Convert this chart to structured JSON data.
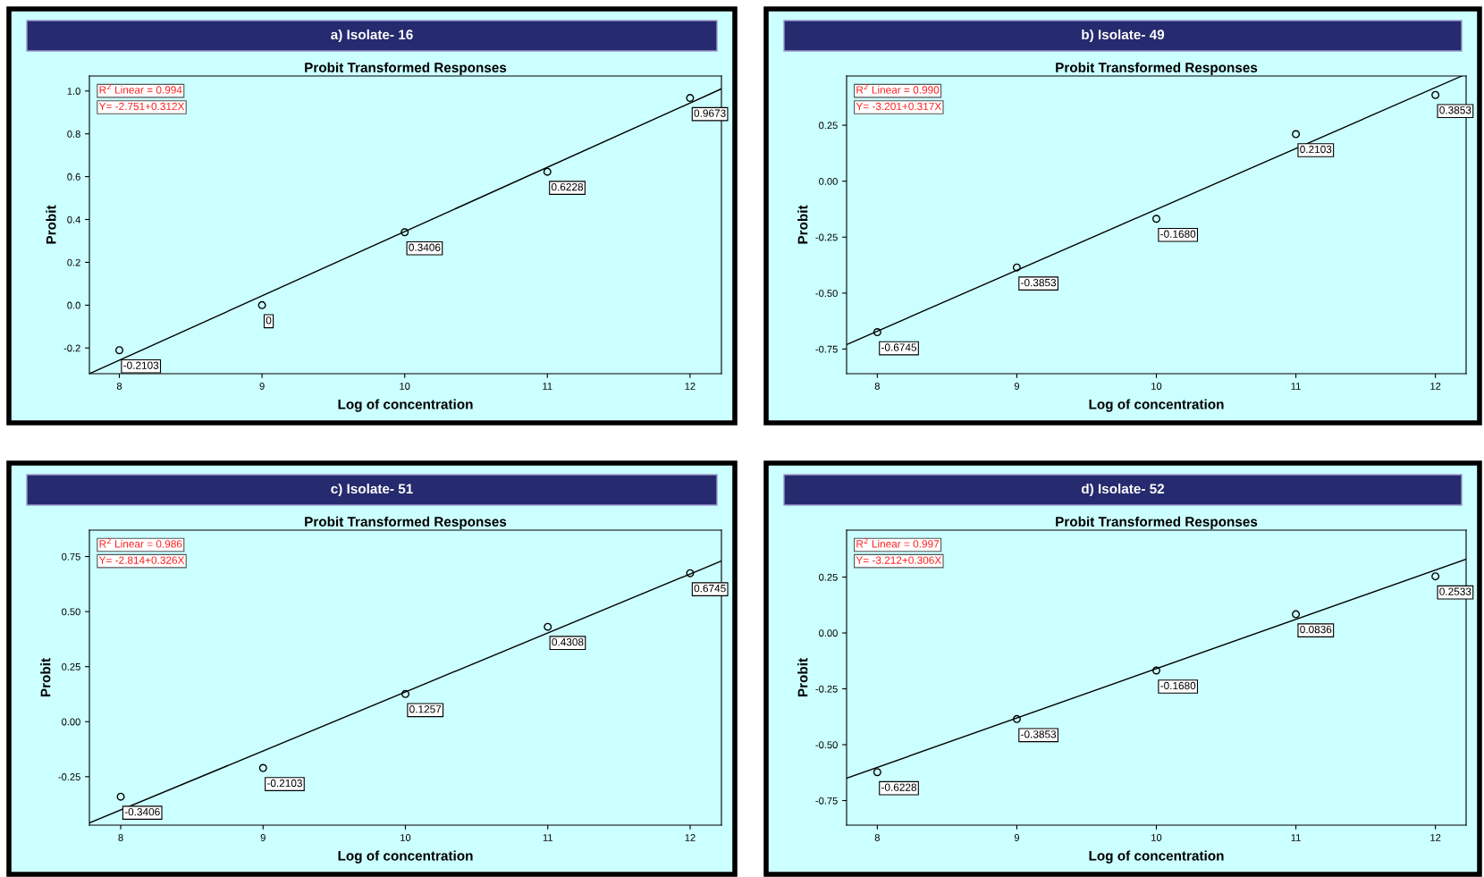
{
  "chart_data": [
    {
      "type": "scatter",
      "title": "a) Isolate- 16",
      "subtitle": "Probit Transformed Responses",
      "xlabel": "Log of concentration",
      "ylabel": "Probit",
      "xlim": [
        7.79,
        12.22
      ],
      "ylim": [
        -0.32,
        1.07
      ],
      "xticks": [
        8,
        9,
        10,
        11,
        12
      ],
      "yticks": [
        {
          "value": -0.2,
          "label": "-0.2"
        },
        {
          "value": 0,
          "label": "0.0"
        },
        {
          "value": 0.2,
          "label": "0.2"
        },
        {
          "value": 0.4,
          "label": "0.4"
        },
        {
          "value": 0.6,
          "label": "0.6"
        },
        {
          "value": 0.8,
          "label": "0.8"
        },
        {
          "value": 1,
          "label": "1.0"
        }
      ],
      "grid": false,
      "annotations": [
        "R$^{2}$ Linear = 0.994",
        "Y= -2.751+0.312X"
      ],
      "series": [
        {
          "type": "scatter",
          "x": [
            8,
            9,
            10,
            11,
            12
          ],
          "values": [
            -0.2103,
            0,
            0.3406,
            0.6228,
            0.9673
          ],
          "value_labels": [
            "-0.2103",
            "0",
            "0.3406",
            "0.6228",
            "0.9673"
          ],
          "color": "#000000",
          "marker": "circle"
        },
        {
          "type": "line",
          "x": [
            7.79,
            12.22
          ],
          "values": [
            -0.32,
            1.01
          ],
          "color": "#000000",
          "line_style": "solid"
        }
      ]
    },
    {
      "type": "scatter",
      "title": "b) Isolate- 49",
      "subtitle": "Probit Transformed Responses",
      "xlabel": "Log of concentration",
      "ylabel": "Probit",
      "xlim": [
        7.78,
        12.22
      ],
      "ylim": [
        -0.86,
        0.47
      ],
      "xticks": [
        8,
        9,
        10,
        11,
        12
      ],
      "yticks": [
        {
          "value": -0.75,
          "label": "-0.75"
        },
        {
          "value": -0.5,
          "label": "-0.50"
        },
        {
          "value": -0.25,
          "label": "-0.25"
        },
        {
          "value": 0,
          "label": "0.00"
        },
        {
          "value": 0.25,
          "label": "0.25"
        }
      ],
      "grid": false,
      "annotations": [
        "R$^{2}$ Linear = 0.990",
        "Y= -3.201+0.317X"
      ],
      "series": [
        {
          "type": "scatter",
          "x": [
            8,
            9,
            10,
            11,
            12
          ],
          "values": [
            -0.6745,
            -0.3853,
            -0.168,
            0.2103,
            0.3853
          ],
          "value_labels": [
            "-0.6745",
            "-0.3853",
            "-0.1680",
            "0.2103",
            "0.3853"
          ],
          "color": "#000000",
          "marker": "circle"
        },
        {
          "type": "line",
          "x": [
            7.78,
            12.19
          ],
          "values": [
            -0.73,
            0.47
          ],
          "color": "#000000",
          "line_style": "solid"
        }
      ]
    },
    {
      "type": "scatter",
      "title": "c) Isolate- 51",
      "subtitle": "Probit Transformed Responses",
      "xlabel": "Log of concentration",
      "ylabel": "Probit",
      "xlim": [
        7.78,
        12.22
      ],
      "ylim": [
        -0.47,
        0.87
      ],
      "xticks": [
        8,
        9,
        10,
        11,
        12
      ],
      "yticks": [
        {
          "value": -0.25,
          "label": "-0.25"
        },
        {
          "value": 0,
          "label": "0.00"
        },
        {
          "value": 0.25,
          "label": "0.25"
        },
        {
          "value": 0.5,
          "label": "0.50"
        },
        {
          "value": 0.75,
          "label": "0.75"
        }
      ],
      "grid": false,
      "annotations": [
        "R$^{2}$ Linear = 0.986",
        "Y= -2.814+0.326X"
      ],
      "series": [
        {
          "type": "scatter",
          "x": [
            8,
            9,
            10,
            11,
            12
          ],
          "values": [
            -0.3406,
            -0.2103,
            0.1257,
            0.4308,
            0.6745
          ],
          "value_labels": [
            "-0.3406",
            "-0.2103",
            "0.1257",
            "0.4308",
            "0.6745"
          ],
          "color": "#000000",
          "marker": "circle"
        },
        {
          "type": "line",
          "x": [
            7.78,
            12.22
          ],
          "values": [
            -0.46,
            0.73
          ],
          "color": "#000000",
          "line_style": "solid"
        }
      ]
    },
    {
      "type": "scatter",
      "title": "d) Isolate- 52",
      "subtitle": "Probit Transformed Responses",
      "xlabel": "Log of concentration",
      "ylabel": "Probit",
      "xlim": [
        7.78,
        12.22
      ],
      "ylim": [
        -0.86,
        0.46
      ],
      "xticks": [
        8,
        9,
        10,
        11,
        12
      ],
      "yticks": [
        {
          "value": -0.75,
          "label": "-0.75"
        },
        {
          "value": -0.5,
          "label": "-0.50"
        },
        {
          "value": -0.25,
          "label": "-0.25"
        },
        {
          "value": 0,
          "label": "0.00"
        },
        {
          "value": 0.25,
          "label": "0.25"
        }
      ],
      "grid": false,
      "annotations": [
        "R$^{2}$ Linear = 0.997",
        "Y= -3.212+0.306X"
      ],
      "series": [
        {
          "type": "scatter",
          "x": [
            8,
            9,
            10,
            11,
            12
          ],
          "values": [
            -0.6228,
            -0.3853,
            -0.168,
            0.0836,
            0.2533
          ],
          "value_labels": [
            "-0.6228",
            "-0.3853",
            "-0.1680",
            "0.0836",
            "0.2533"
          ],
          "color": "#000000",
          "marker": "circle"
        },
        {
          "type": "line",
          "x": [
            7.78,
            12.22
          ],
          "values": [
            -0.65,
            0.33
          ],
          "color": "#000000",
          "line_style": "solid"
        }
      ]
    }
  ]
}
